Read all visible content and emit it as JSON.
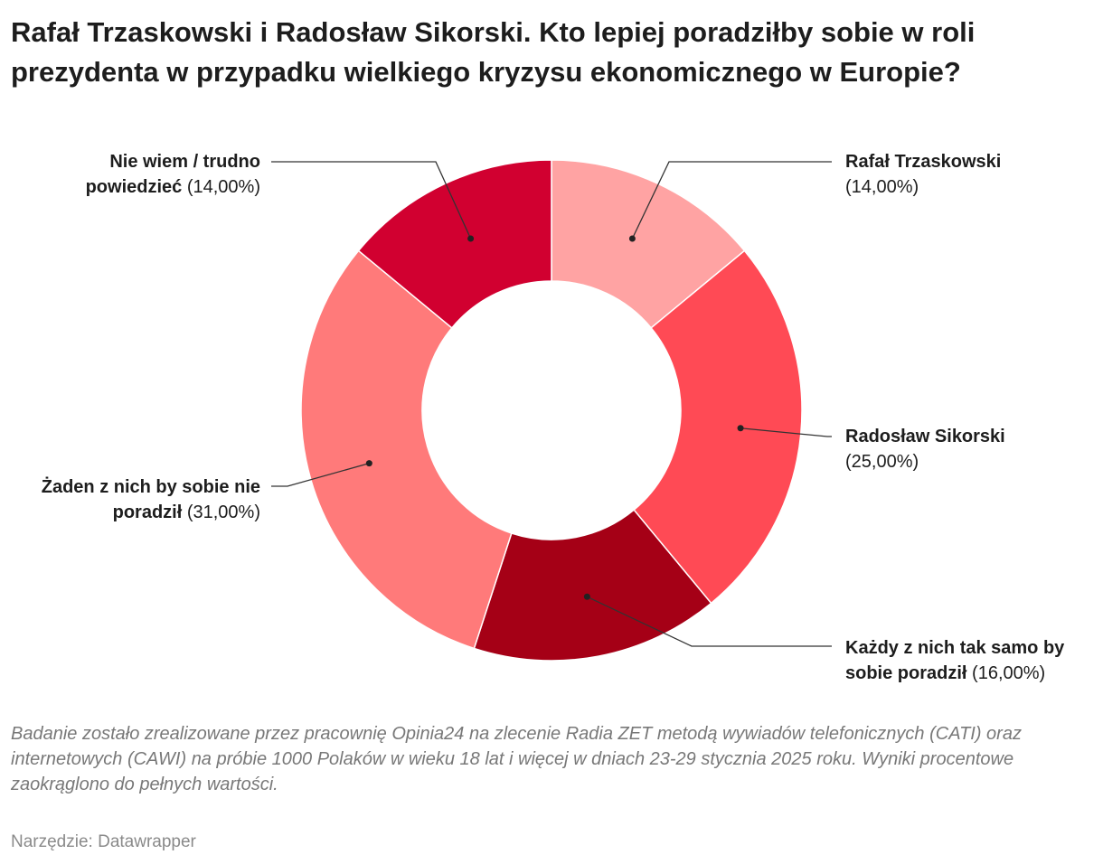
{
  "title": "Rafał Trzaskowski i Radosław Sikorski. Kto lepiej poradziłby sobie w roli prezydenta w przypadku wielkiego kryzysu ekonomicznego w Europie?",
  "chart_data": {
    "type": "pie",
    "variant": "donut",
    "title": "Rafał Trzaskowski i Radosław Sikorski. Kto lepiej poradziłby sobie w roli prezydenta w przypadku wielkiego kryzysu ekonomicznego w Europie?",
    "unit": "%",
    "slices": [
      {
        "name": "Rafał Trzaskowski",
        "value": 14,
        "display": "(14,00%)",
        "color": "#ffa3a3"
      },
      {
        "name": "Radosław Sikorski",
        "value": 25,
        "display": "(25,00%)",
        "color": "#ff4a55"
      },
      {
        "name": "Każdy z nich tak samo by sobie poradził",
        "value": 16,
        "display": "(16,00%)",
        "color": "#a50016"
      },
      {
        "name": "Żaden z nich by sobie nie poradził",
        "value": 31,
        "display": "(31,00%)",
        "color": "#ff7a7a"
      },
      {
        "name": "Nie wiem / trudno powiedzieć",
        "value": 14,
        "display": "(14,00%)",
        "color": "#d10030"
      }
    ]
  },
  "notes": "Badanie zostało zrealizowane przez pracownię Opinia24 na zlecenie Radia ZET metodą wywiadów telefonicznych (CATI) oraz internetowych (CAWI) na próbie 1000 Polaków w wieku 18 lat i więcej w dniach 23-29 stycznia 2025 roku. Wyniki procentowe zaokrąglono do pełnych wartości.",
  "source": "Narzędzie: Datawrapper"
}
